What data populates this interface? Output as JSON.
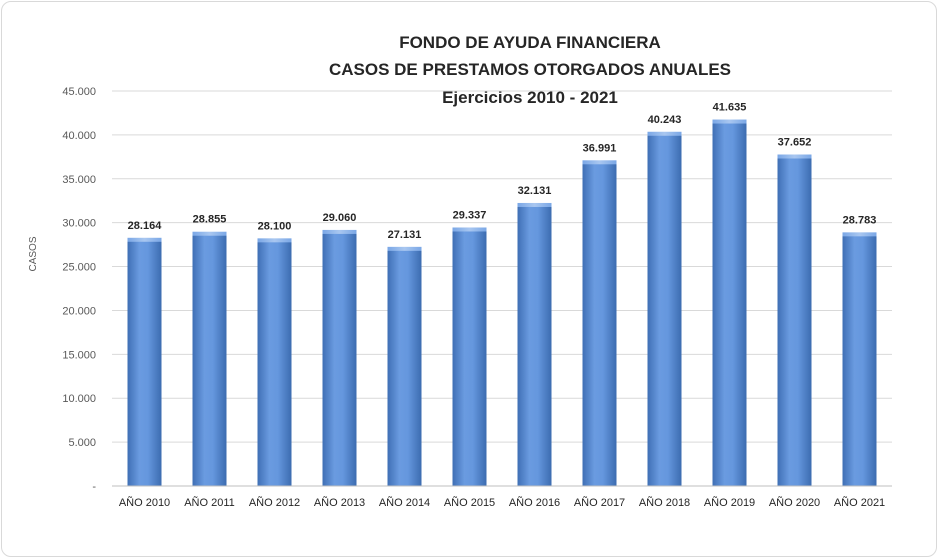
{
  "chart_data": {
    "type": "bar",
    "title": "FONDO DE AYUDA FINANCIERA",
    "subtitle": "CASOS DE PRESTAMOS OTORGADOS ANUALES",
    "subtitle2": "Ejercicios 2010 - 2021",
    "xlabel": "",
    "ylabel": "CASOS",
    "ylim": [
      0,
      45000
    ],
    "yticks": [
      "-",
      "5.000",
      "10.000",
      "15.000",
      "20.000",
      "25.000",
      "30.000",
      "35.000",
      "40.000",
      "45.000"
    ],
    "grid": true,
    "bar_color": "#5b8fd6",
    "categories": [
      "AÑO 2010",
      "AÑO 2011",
      "AÑO 2012",
      "AÑO 2013",
      "AÑO 2014",
      "AÑO 2015",
      "AÑO 2016",
      "AÑO 2017",
      "AÑO 2018",
      "AÑO 2019",
      "AÑO 2020",
      "AÑO 2021"
    ],
    "values": [
      28164,
      28855,
      28100,
      29060,
      27131,
      29337,
      32131,
      36991,
      40243,
      41635,
      37652,
      28783
    ],
    "data_labels": [
      "28.164",
      "28.855",
      "28.100",
      "29.060",
      "27.131",
      "29.337",
      "32.131",
      "36.991",
      "40.243",
      "41.635",
      "37.652",
      "28.783"
    ]
  }
}
